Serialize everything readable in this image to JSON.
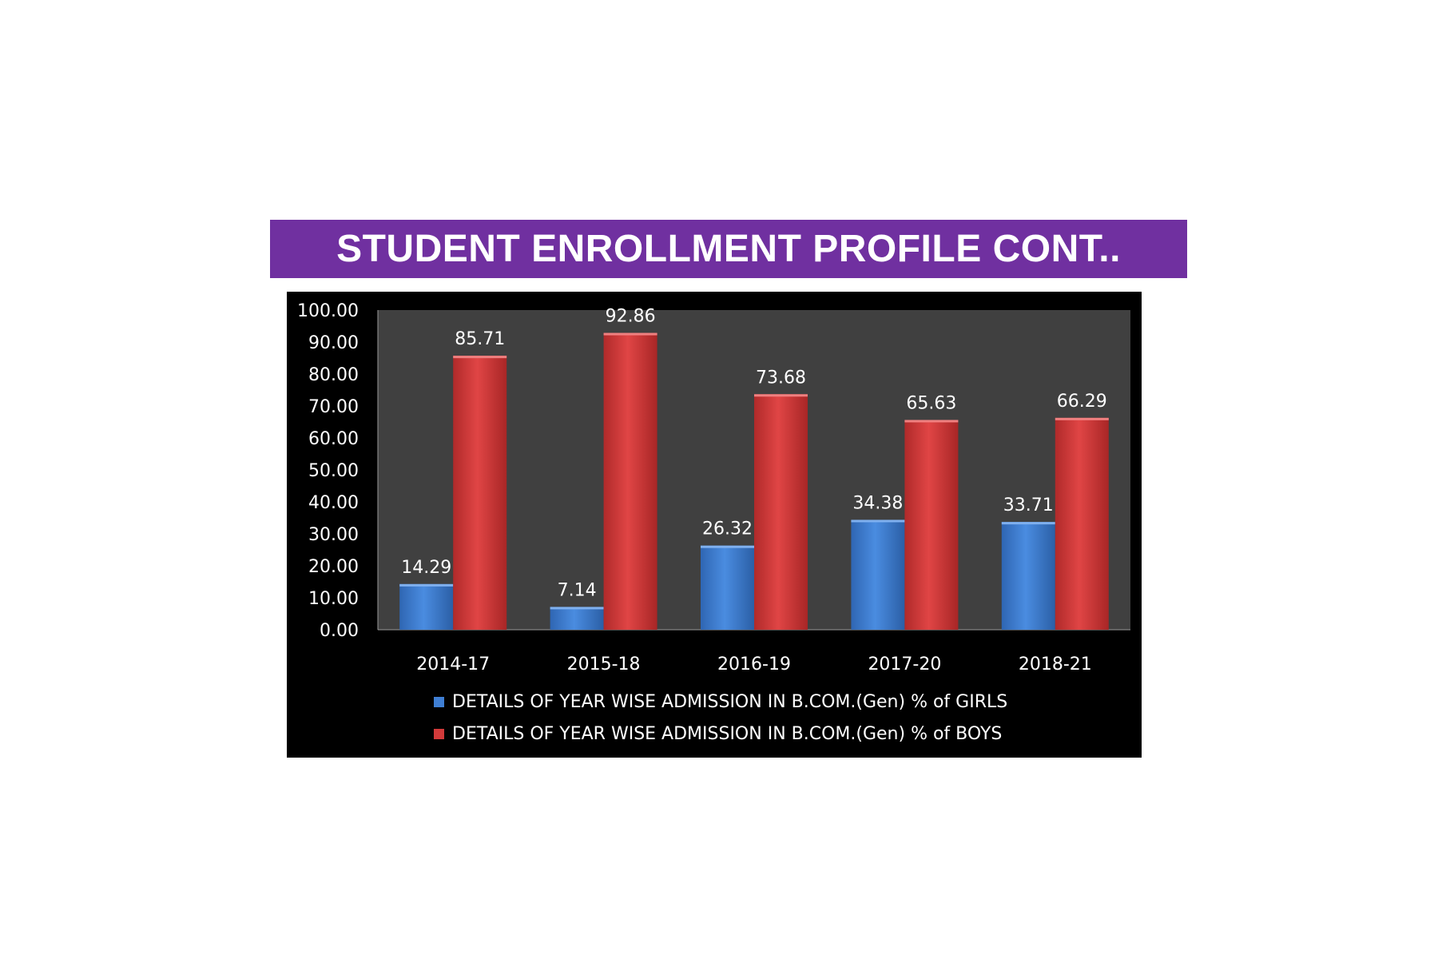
{
  "banner": {
    "title": "STUDENT ENROLLMENT PROFILE CONT.."
  },
  "chart_data": {
    "type": "bar",
    "categories": [
      "2014-17",
      "2015-18",
      "2016-19",
      "2017-20",
      "2018-21"
    ],
    "series": [
      {
        "name": "DETAILS OF YEAR WISE ADMISSION IN B.COM.(Gen) % of GIRLS",
        "color": "#3f7fd4",
        "values": [
          14.29,
          7.14,
          26.32,
          34.38,
          33.71
        ],
        "labels": [
          "14.29",
          "7.14",
          "26.32",
          "34.38",
          "33.71"
        ]
      },
      {
        "name": "DETAILS OF YEAR WISE ADMISSION IN B.COM.(Gen) % of BOYS",
        "color": "#d23a3a",
        "values": [
          85.71,
          92.86,
          73.68,
          65.63,
          66.29
        ],
        "labels": [
          "85.71",
          "92.86",
          "73.68",
          "65.63",
          "66.29"
        ]
      }
    ],
    "ylim": [
      0,
      100
    ],
    "yticks": [
      "0.00",
      "10.00",
      "20.00",
      "30.00",
      "40.00",
      "50.00",
      "60.00",
      "70.00",
      "80.00",
      "90.00",
      "100.00"
    ],
    "legend_position": "bottom",
    "grid": false,
    "plot_background": "#404040"
  }
}
